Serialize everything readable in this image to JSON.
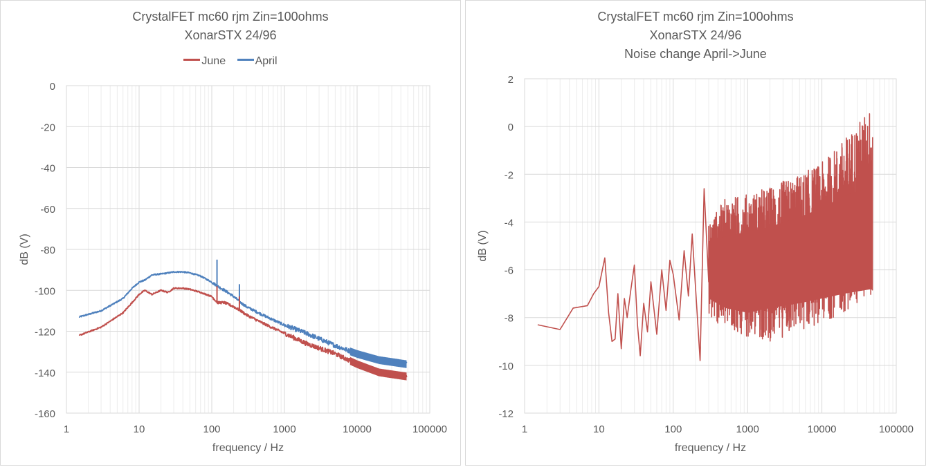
{
  "chart_data": [
    {
      "type": "line",
      "title": [
        "CrystalFET mc60 rjm Zin=100ohms",
        "XonarSTX 24/96"
      ],
      "xlabel": "frequency / Hz",
      "ylabel": "dB (V)",
      "xscale": "log",
      "xlim": [
        1,
        100000
      ],
      "ylim": [
        -160,
        0
      ],
      "xticks": [
        "1",
        "10",
        "100",
        "1000",
        "10000",
        "100000"
      ],
      "yticks": [
        "0",
        "-20",
        "-40",
        "-60",
        "-80",
        "-100",
        "-120",
        "-140",
        "-160"
      ],
      "grid": "on",
      "legend_position": "top",
      "series": [
        {
          "name": "June",
          "color": "#c0504d",
          "x": [
            1.5,
            3,
            6,
            8,
            10,
            12,
            15,
            20,
            25,
            30,
            40,
            50,
            70,
            100,
            120,
            150,
            200,
            250,
            300,
            500,
            1000,
            2000,
            5000,
            10000,
            20000,
            48000
          ],
          "y": [
            -122,
            -118,
            -111,
            -106,
            -102,
            -100,
            -102,
            -100,
            -101,
            -99,
            -99,
            -99.5,
            -101,
            -103,
            -106,
            -106,
            -108,
            -110,
            -112,
            -116,
            -121,
            -126,
            -131,
            -136,
            -140,
            -142
          ]
        },
        {
          "name": "April",
          "color": "#4f81bd",
          "x": [
            1.5,
            3,
            6,
            8,
            10,
            12,
            15,
            20,
            25,
            30,
            40,
            50,
            70,
            100,
            120,
            150,
            200,
            250,
            300,
            500,
            1000,
            2000,
            5000,
            10000,
            20000,
            48000
          ],
          "y": [
            -113,
            -110,
            -104,
            -99,
            -96,
            -95,
            -92.5,
            -92,
            -91.5,
            -91,
            -91,
            -91.5,
            -93,
            -96,
            -98,
            -100,
            -103,
            -106,
            -108,
            -112,
            -117,
            -121,
            -127,
            -131,
            -134,
            -136
          ]
        }
      ]
    },
    {
      "type": "line",
      "title": [
        "CrystalFET mc60 rjm Zin=100ohms",
        "XonarSTX 24/96",
        "Noise change April->June"
      ],
      "xlabel": "frequency / Hz",
      "ylabel": "dB (V)",
      "xscale": "log",
      "xlim": [
        1,
        100000
      ],
      "ylim": [
        -12,
        2
      ],
      "xticks": [
        "1",
        "10",
        "100",
        "1000",
        "10000",
        "100000"
      ],
      "yticks": [
        "2",
        "0",
        "-2",
        "-4",
        "-6",
        "-8",
        "-10",
        "-12"
      ],
      "grid": "on",
      "series": [
        {
          "color": "#c0504d",
          "x": [
            1.5,
            3,
            4.5,
            7,
            8.5,
            10,
            12,
            13.5,
            15,
            16.5,
            18,
            20,
            22,
            24,
            27,
            30,
            33,
            36,
            40,
            45,
            50,
            60,
            70,
            80,
            90,
            100,
            120,
            140,
            160,
            180,
            200,
            230,
            260,
            300
          ],
          "y": [
            -8.3,
            -8.5,
            -7.6,
            -7.5,
            -7.0,
            -6.7,
            -5.5,
            -7.8,
            -9.0,
            -8.9,
            -7.0,
            -9.3,
            -7.2,
            -8.0,
            -6.8,
            -5.8,
            -8.3,
            -9.6,
            -7.4,
            -8.6,
            -6.5,
            -8.7,
            -6.0,
            -7.7,
            -5.6,
            -6.2,
            -8.1,
            -5.2,
            -7.1,
            -4.5,
            -6.8,
            -9.8,
            -2.6,
            -6.5
          ],
          "noise_band": {
            "x": [
              300,
              500,
              1000,
              2000,
              5000,
              10000,
              20000,
              48000
            ],
            "upper": [
              -4.0,
              -3.0,
              -2.8,
              -2.5,
              -2.0,
              -1.5,
              -0.5,
              0.9
            ],
            "lower": [
              -8.0,
              -8.5,
              -8.8,
              -9.0,
              -8.6,
              -8.2,
              -7.8,
              -7.0
            ],
            "fill": [
              -4.8,
              -4.6,
              -4.4,
              -4.2,
              -3.8,
              -3.4,
              -2.9,
              -2.5
            ],
            "fill_low": [
              -7.2,
              -7.6,
              -7.8,
              -7.6,
              -7.4,
              -7.2,
              -7.0,
              -6.8
            ]
          }
        }
      ]
    }
  ]
}
